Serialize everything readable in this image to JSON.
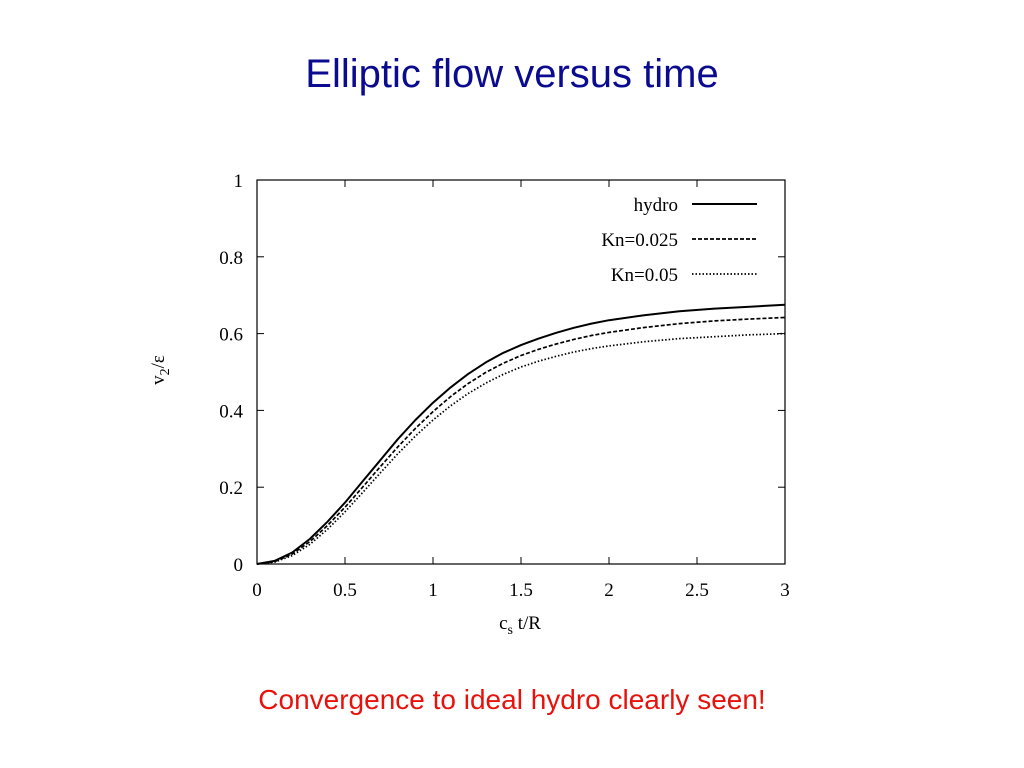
{
  "slide": {
    "title": "Elliptic flow versus time",
    "caption": "Convergence to ideal hydro clearly seen!"
  },
  "chart_data": {
    "type": "line",
    "xlabel_main": "c",
    "xlabel_sub": "s",
    "xlabel_rest": " t/R",
    "ylabel_main": "v",
    "ylabel_sub": "2",
    "ylabel_rest": "/ε",
    "xlim": [
      0,
      3
    ],
    "ylim": [
      0,
      1
    ],
    "xticks": [
      0,
      0.5,
      1,
      1.5,
      2,
      2.5,
      3
    ],
    "xtick_labels": [
      "0",
      "0.5",
      "1",
      "1.5",
      "2",
      "2.5",
      "3"
    ],
    "yticks": [
      0,
      0.2,
      0.4,
      0.6,
      0.8,
      1
    ],
    "ytick_labels": [
      "0",
      "0.2",
      "0.4",
      "0.6",
      "0.8",
      "1"
    ],
    "grid": false,
    "legend_position": "top-right",
    "line_color": "#000000",
    "x": [
      0,
      0.1,
      0.2,
      0.3,
      0.4,
      0.5,
      0.6,
      0.7,
      0.8,
      0.9,
      1.0,
      1.1,
      1.2,
      1.3,
      1.4,
      1.5,
      1.6,
      1.7,
      1.8,
      1.9,
      2.0,
      2.2,
      2.4,
      2.6,
      2.8,
      3.0
    ],
    "series": [
      {
        "name": "hydro",
        "style": "solid",
        "values": [
          0,
          0.008,
          0.03,
          0.065,
          0.11,
          0.16,
          0.215,
          0.27,
          0.325,
          0.375,
          0.42,
          0.46,
          0.495,
          0.525,
          0.55,
          0.57,
          0.587,
          0.602,
          0.615,
          0.626,
          0.635,
          0.648,
          0.658,
          0.665,
          0.67,
          0.675
        ]
      },
      {
        "name": "Kn=0.025",
        "style": "dashed",
        "values": [
          0,
          0.006,
          0.026,
          0.058,
          0.1,
          0.148,
          0.2,
          0.253,
          0.305,
          0.353,
          0.397,
          0.436,
          0.47,
          0.499,
          0.523,
          0.543,
          0.559,
          0.573,
          0.585,
          0.595,
          0.603,
          0.616,
          0.626,
          0.633,
          0.638,
          0.642
        ]
      },
      {
        "name": "Kn=0.05",
        "style": "dotted",
        "values": [
          0,
          0.005,
          0.022,
          0.051,
          0.09,
          0.136,
          0.186,
          0.237,
          0.287,
          0.333,
          0.375,
          0.412,
          0.444,
          0.471,
          0.494,
          0.513,
          0.528,
          0.541,
          0.552,
          0.561,
          0.568,
          0.579,
          0.587,
          0.592,
          0.597,
          0.6
        ]
      }
    ]
  }
}
